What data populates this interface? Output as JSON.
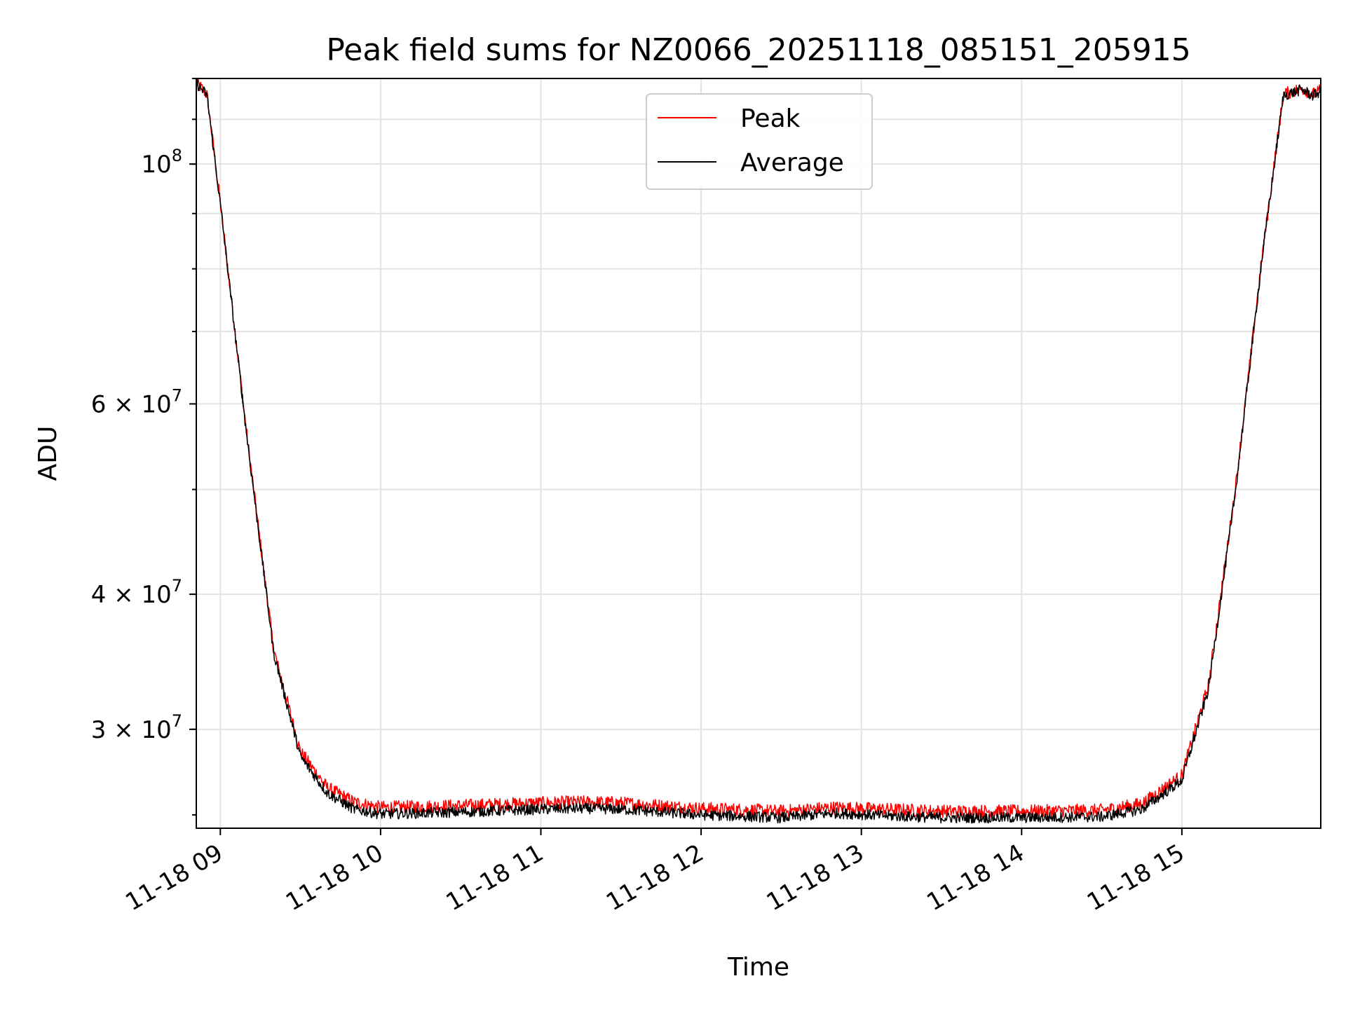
{
  "chart_data": {
    "type": "line",
    "title": "Peak field sums for NZ0066_20251118_085151_205915",
    "xlabel": "Time",
    "ylabel": "ADU",
    "y_scale": "log",
    "grid": true,
    "legend_position": "upper-center",
    "xlim": [
      "2025-11-18 08:51",
      "2025-11-18 15:52"
    ],
    "ylim": [
      24300000,
      120000000
    ],
    "x_ticks": [
      {
        "label": "11-18 09",
        "time": "2025-11-18 09:00"
      },
      {
        "label": "11-18 10",
        "time": "2025-11-18 10:00"
      },
      {
        "label": "11-18 11",
        "time": "2025-11-18 11:00"
      },
      {
        "label": "11-18 12",
        "time": "2025-11-18 12:00"
      },
      {
        "label": "11-18 13",
        "time": "2025-11-18 13:00"
      },
      {
        "label": "11-18 14",
        "time": "2025-11-18 14:00"
      },
      {
        "label": "11-18 15",
        "time": "2025-11-18 15:00"
      }
    ],
    "y_ticks": [
      {
        "label_base": "10",
        "label_exp": "8",
        "value": 100000000
      },
      {
        "label_base": "6 × 10",
        "label_exp": "7",
        "value": 60000000
      },
      {
        "label_base": "4 × 10",
        "label_exp": "7",
        "value": 40000000
      },
      {
        "label_base": "3 × 10",
        "label_exp": "7",
        "value": 30000000
      }
    ],
    "series": [
      {
        "name": "Peak",
        "color": "#ff0000",
        "noise": 0.006,
        "points": [
          [
            "2025-11-18 08:51",
            119000000
          ],
          [
            "2025-11-18 08:55",
            116000000
          ],
          [
            "2025-11-18 09:00",
            92000000
          ],
          [
            "2025-11-18 09:10",
            56000000
          ],
          [
            "2025-11-18 09:20",
            35500000
          ],
          [
            "2025-11-18 09:30",
            28600000
          ],
          [
            "2025-11-18 09:40",
            26500000
          ],
          [
            "2025-11-18 09:50",
            25700000
          ],
          [
            "2025-11-18 10:00",
            25400000
          ],
          [
            "2025-11-18 10:30",
            25500000
          ],
          [
            "2025-11-18 11:00",
            25650000
          ],
          [
            "2025-11-18 11:15",
            25700000
          ],
          [
            "2025-11-18 11:30",
            25650000
          ],
          [
            "2025-11-18 12:00",
            25350000
          ],
          [
            "2025-11-18 12:30",
            25200000
          ],
          [
            "2025-11-18 12:50",
            25400000
          ],
          [
            "2025-11-18 13:10",
            25300000
          ],
          [
            "2025-11-18 13:30",
            25200000
          ],
          [
            "2025-11-18 14:00",
            25200000
          ],
          [
            "2025-11-18 14:30",
            25250000
          ],
          [
            "2025-11-18 14:45",
            25600000
          ],
          [
            "2025-11-18 15:00",
            27200000
          ],
          [
            "2025-11-18 15:10",
            33000000
          ],
          [
            "2025-11-18 15:20",
            50000000
          ],
          [
            "2025-11-18 15:30",
            82000000
          ],
          [
            "2025-11-18 15:38",
            116000000
          ],
          [
            "2025-11-18 15:45",
            117500000
          ],
          [
            "2025-11-18 15:49",
            116000000
          ],
          [
            "2025-11-18 15:52",
            117000000
          ]
        ]
      },
      {
        "name": "Average",
        "color": "#000000",
        "noise": 0.005,
        "points": [
          [
            "2025-11-18 08:51",
            118800000
          ],
          [
            "2025-11-18 08:55",
            115800000
          ],
          [
            "2025-11-18 09:00",
            91800000
          ],
          [
            "2025-11-18 09:10",
            55800000
          ],
          [
            "2025-11-18 09:20",
            35300000
          ],
          [
            "2025-11-18 09:30",
            28300000
          ],
          [
            "2025-11-18 09:40",
            26200000
          ],
          [
            "2025-11-18 09:50",
            25300000
          ],
          [
            "2025-11-18 10:00",
            25050000
          ],
          [
            "2025-11-18 10:30",
            25150000
          ],
          [
            "2025-11-18 11:00",
            25300000
          ],
          [
            "2025-11-18 11:15",
            25350000
          ],
          [
            "2025-11-18 11:30",
            25300000
          ],
          [
            "2025-11-18 12:00",
            25000000
          ],
          [
            "2025-11-18 12:30",
            24850000
          ],
          [
            "2025-11-18 12:50",
            25100000
          ],
          [
            "2025-11-18 13:10",
            24950000
          ],
          [
            "2025-11-18 13:30",
            24850000
          ],
          [
            "2025-11-18 14:00",
            24850000
          ],
          [
            "2025-11-18 14:30",
            24900000
          ],
          [
            "2025-11-18 14:45",
            25300000
          ],
          [
            "2025-11-18 15:00",
            26900000
          ],
          [
            "2025-11-18 15:10",
            32700000
          ],
          [
            "2025-11-18 15:20",
            49700000
          ],
          [
            "2025-11-18 15:30",
            81700000
          ],
          [
            "2025-11-18 15:38",
            115700000
          ],
          [
            "2025-11-18 15:45",
            117200000
          ],
          [
            "2025-11-18 15:49",
            115700000
          ],
          [
            "2025-11-18 15:52",
            116700000
          ]
        ]
      }
    ]
  }
}
